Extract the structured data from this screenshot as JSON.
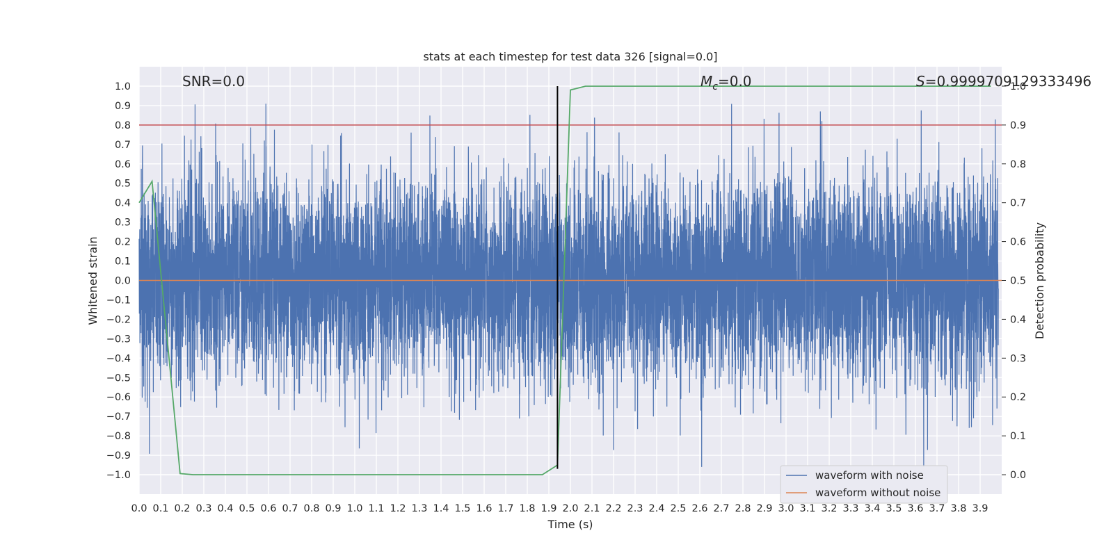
{
  "chart_data": {
    "type": "line",
    "title": "stats at each timestep for test data 326 [signal=0.0]",
    "xlabel": "Time (s)",
    "ylabel": "Whitened strain",
    "ylabel_right": "Detection probability",
    "xlim": [
      0.0,
      4.0
    ],
    "ylim": [
      -1.1,
      1.1
    ],
    "ylim_right": [
      -0.05,
      1.05
    ],
    "x_ticks": [
      "0.0",
      "0.1",
      "0.2",
      "0.3",
      "0.4",
      "0.5",
      "0.6",
      "0.7",
      "0.8",
      "0.9",
      "1.0",
      "1.1",
      "1.2",
      "1.3",
      "1.4",
      "1.5",
      "1.6",
      "1.7",
      "1.8",
      "1.9",
      "2.0",
      "2.1",
      "2.2",
      "2.3",
      "2.4",
      "2.5",
      "2.6",
      "2.7",
      "2.8",
      "2.9",
      "3.0",
      "3.1",
      "3.2",
      "3.3",
      "3.4",
      "3.5",
      "3.6",
      "3.7",
      "3.8",
      "3.9"
    ],
    "y_ticks": [
      "1.0",
      "0.9",
      "0.8",
      "0.7",
      "0.6",
      "0.5",
      "0.4",
      "0.3",
      "0.2",
      "0.1",
      "0.0",
      "-0.1",
      "-0.2",
      "-0.3",
      "-0.4",
      "-0.5",
      "-0.6",
      "-0.7",
      "-0.8",
      "-0.9",
      "-1.0"
    ],
    "y_ticks_right": [
      "1.0",
      "0.9",
      "0.8",
      "0.7",
      "0.6",
      "0.5",
      "0.4",
      "0.3",
      "0.2",
      "0.1",
      "0.0"
    ],
    "grid": true,
    "legend_position": "bottom-right",
    "annotations": {
      "snr": "SNR=0.0",
      "mc_symbol": "M",
      "mc_sub": "c",
      "mc_value": "=0.0",
      "s_symbol": "S",
      "s_value": "=0.9999709129333496"
    },
    "series": [
      {
        "name": "waveform with noise",
        "color": "#4c72b0",
        "description_range": [
          -0.96,
          1.0
        ],
        "sample_rate": 2048
      },
      {
        "name": "waveform without noise",
        "color": "#dd8452",
        "constant_value": 0.0
      },
      {
        "color": "#55a868",
        "axis": "right",
        "x": [
          0.0,
          0.06,
          0.19,
          0.25,
          1.87,
          1.94,
          2.0,
          2.07,
          3.95
        ],
        "values": [
          0.7,
          0.755,
          0.003,
          0.0,
          0.0,
          0.025,
          0.99,
          1.0,
          1.0
        ]
      }
    ],
    "threshold_line": {
      "axis": "right",
      "value": 0.9,
      "color": "#c44e52"
    },
    "vertical_marker": {
      "x": 1.94,
      "y_range": [
        -0.97,
        1.0
      ],
      "color": "#000000"
    },
    "ticks_right_color": "#262626"
  }
}
